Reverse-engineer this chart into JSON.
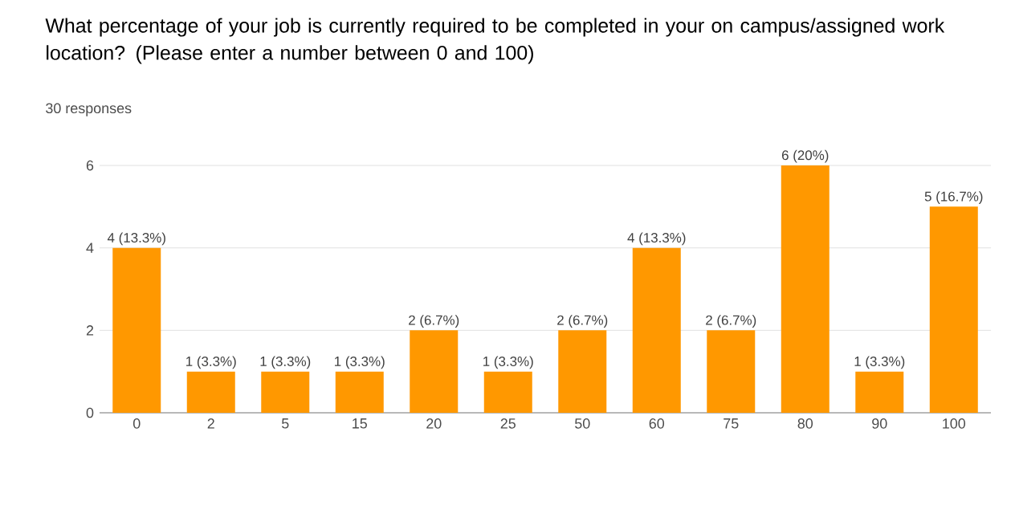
{
  "chart_data": {
    "type": "bar",
    "title": "What percentage of your job is currently required to be completed in your on campus/assigned work location? (Please enter a number between 0 and 100)",
    "subtitle": "30 responses",
    "categories": [
      "0",
      "2",
      "5",
      "15",
      "20",
      "25",
      "50",
      "60",
      "75",
      "80",
      "90",
      "100"
    ],
    "values": [
      4,
      1,
      1,
      1,
      2,
      1,
      2,
      4,
      2,
      6,
      1,
      5
    ],
    "value_labels": [
      "4 (13.3%)",
      "1 (3.3%)",
      "1 (3.3%)",
      "1 (3.3%)",
      "2 (6.7%)",
      "1 (3.3%)",
      "2 (6.7%)",
      "4 (13.3%)",
      "2 (6.7%)",
      "6 (20%)",
      "1 (3.3%)",
      "5 (16.7%)"
    ],
    "color": "#ff9800",
    "ylim": [
      0,
      6
    ],
    "yticks": [
      0,
      2,
      4,
      6
    ],
    "grid": "y"
  }
}
